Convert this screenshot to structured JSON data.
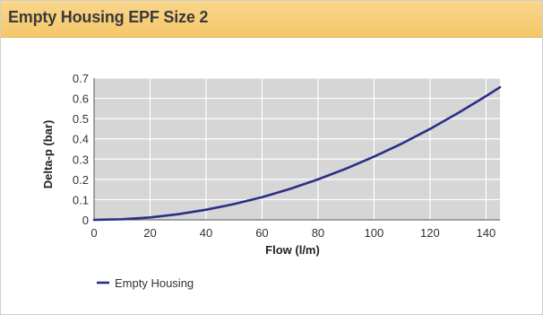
{
  "header": {
    "title": "Empty Housing EPF Size 2"
  },
  "colors": {
    "header_bg": "#f5c76a",
    "plot_bg": "#d6d6d6",
    "grid": "#ffffff",
    "series": "#2b2f86"
  },
  "chart_data": {
    "type": "line",
    "title": "Empty Housing EPF Size 2",
    "xlabel": "Flow (l/m)",
    "ylabel": "Delta-p (bar)",
    "xlim": [
      0,
      145
    ],
    "ylim": [
      0,
      0.7
    ],
    "x_ticks": [
      0,
      20,
      40,
      60,
      80,
      100,
      120,
      140
    ],
    "y_ticks": [
      0,
      0.1,
      0.2,
      0.3,
      0.4,
      0.5,
      0.6,
      0.7
    ],
    "x_tick_labels": [
      "0",
      "20",
      "40",
      "60",
      "80",
      "100",
      "120",
      "140"
    ],
    "y_tick_labels": [
      "0",
      "0.1",
      "0.2",
      "0.3",
      "0.4",
      "0.5",
      "0.6",
      "0.7"
    ],
    "grid": true,
    "legend": "bottom-left",
    "series": [
      {
        "name": "Empty Housing",
        "x": [
          0,
          10,
          20,
          30,
          40,
          50,
          60,
          70,
          80,
          90,
          100,
          110,
          120,
          130,
          140,
          145
        ],
        "y": [
          0,
          0.003,
          0.012,
          0.028,
          0.05,
          0.078,
          0.112,
          0.153,
          0.2,
          0.253,
          0.312,
          0.377,
          0.449,
          0.527,
          0.611,
          0.655
        ]
      }
    ]
  }
}
